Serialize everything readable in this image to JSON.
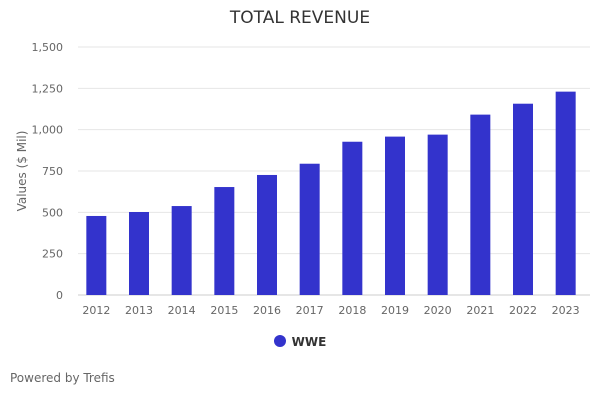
{
  "chart_data": {
    "type": "bar",
    "title": "TOTAL REVENUE",
    "xlabel": "",
    "ylabel": "Values ($ Mil)",
    "ylim": [
      0,
      1500
    ],
    "yticks": [
      0,
      250,
      500,
      750,
      1000,
      1250,
      1500
    ],
    "grid": true,
    "legend_position": "bottom",
    "categories": [
      "2012",
      "2013",
      "2014",
      "2015",
      "2016",
      "2017",
      "2018",
      "2019",
      "2020",
      "2021",
      "2022",
      "2023"
    ],
    "series": [
      {
        "name": "WWE",
        "color": "#3333cc",
        "values": [
          478,
          502,
          538,
          653,
          726,
          794,
          927,
          958,
          970,
          1091,
          1157,
          1230
        ]
      }
    ]
  },
  "credit": "Powered by Trefis"
}
